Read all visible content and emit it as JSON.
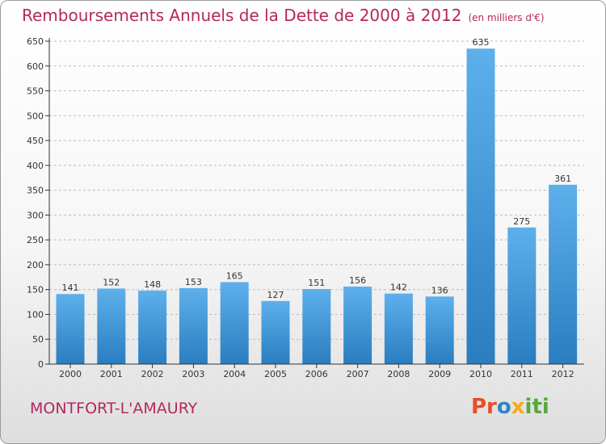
{
  "chart_data": {
    "type": "bar",
    "title": "Remboursements Annuels de la Dette de 2000 à 2012",
    "subtitle": "(en milliers d'€)",
    "categories": [
      "2000",
      "2001",
      "2002",
      "2003",
      "2004",
      "2005",
      "2006",
      "2007",
      "2008",
      "2009",
      "2010",
      "2011",
      "2012"
    ],
    "values": [
      141,
      152,
      148,
      153,
      165,
      127,
      151,
      156,
      142,
      136,
      635,
      275,
      361
    ],
    "ylim": [
      0,
      650
    ],
    "yticks": [
      0,
      50,
      100,
      150,
      200,
      250,
      300,
      350,
      400,
      450,
      500,
      550,
      600,
      650
    ],
    "grid": true,
    "bar_color": "#5aa9e6"
  },
  "commune": "MONTFORT-L'AMAURY",
  "logo": {
    "p1": "Pr",
    "p2": "o",
    "p3": "x",
    "p4": "iti"
  },
  "colors": {
    "accent": "#b5275e",
    "axis": "#333333",
    "grid": "#bbbbbb"
  }
}
